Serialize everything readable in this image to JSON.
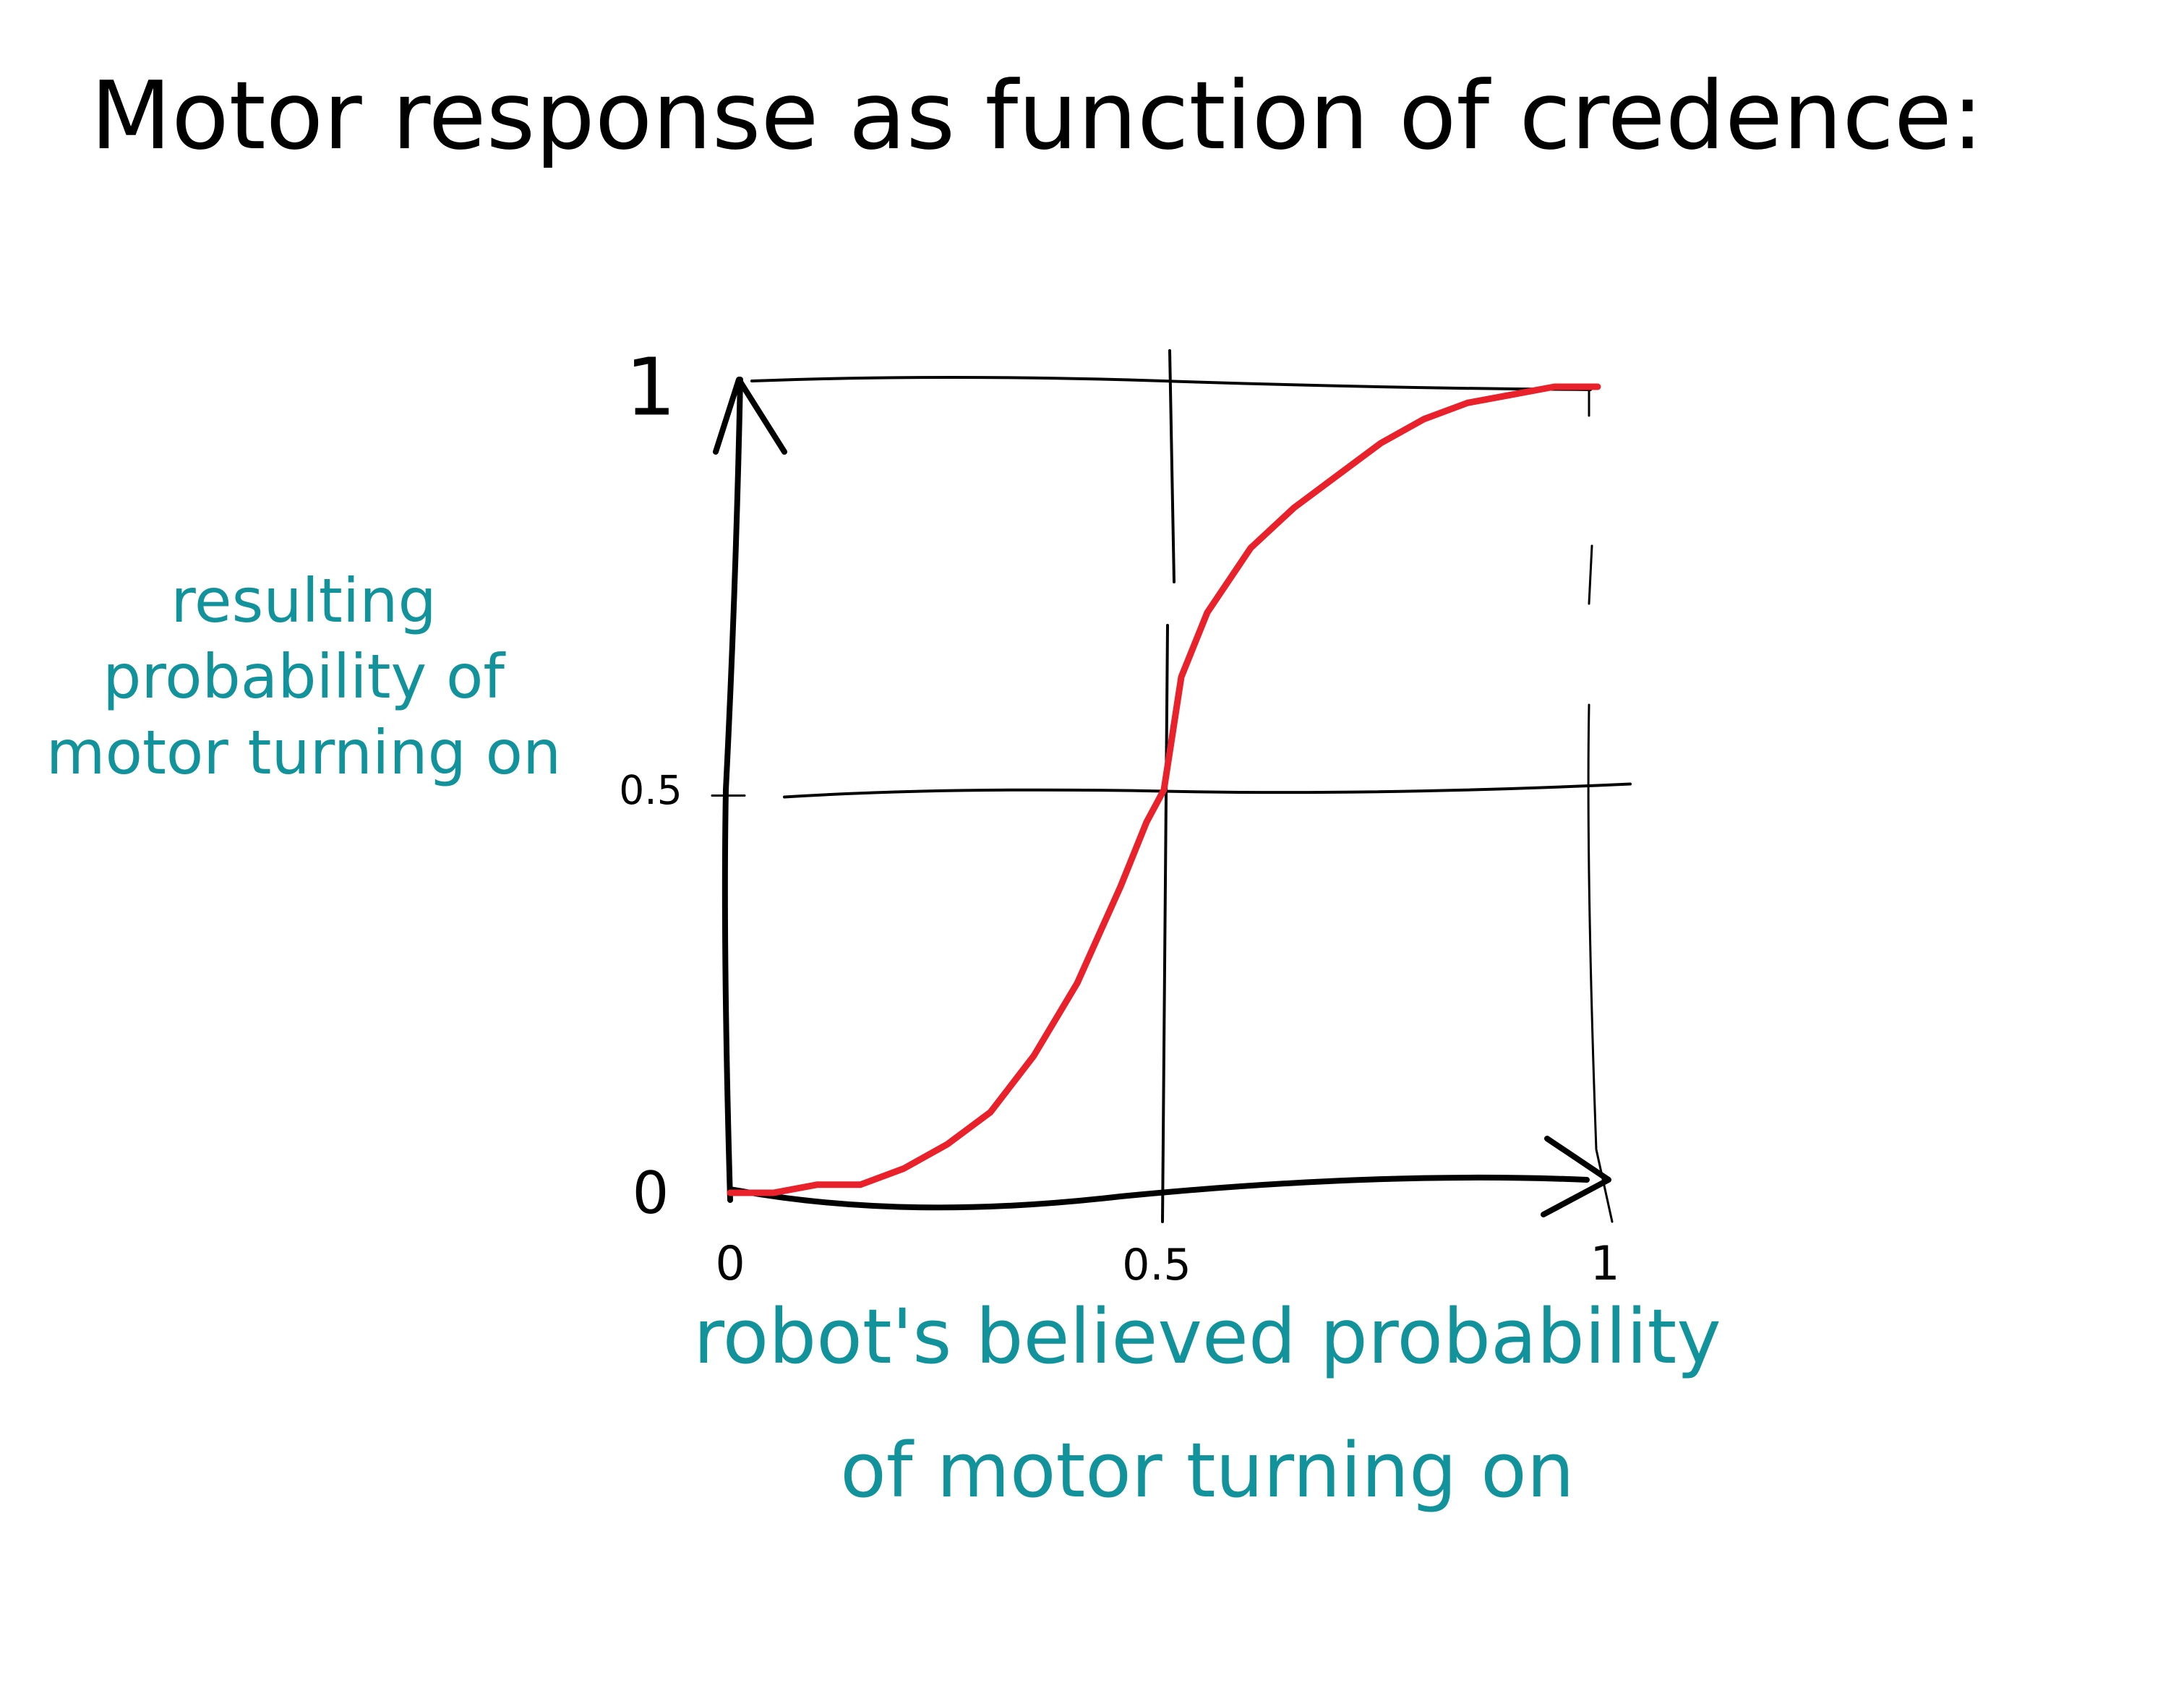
{
  "chart_data": {
    "type": "line",
    "title": "Motor response as function of credence:",
    "xlabel": "robot's believed probability of motor turning on",
    "ylabel": "resulting probability of motor turning on",
    "xlim": [
      0,
      1
    ],
    "ylim": [
      0,
      1
    ],
    "x_ticks": [
      "0",
      "0.5",
      "1"
    ],
    "y_ticks": [
      "0",
      "0.5",
      "1"
    ],
    "grid": true,
    "series": [
      {
        "color": "#e8212b",
        "x": [
          0.0,
          0.05,
          0.1,
          0.15,
          0.2,
          0.25,
          0.3,
          0.35,
          0.4,
          0.45,
          0.48,
          0.5,
          0.52,
          0.55,
          0.6,
          0.65,
          0.7,
          0.75,
          0.8,
          0.85,
          0.9,
          0.95,
          1.0
        ],
        "y": [
          0.0,
          0.0,
          0.01,
          0.01,
          0.03,
          0.06,
          0.1,
          0.17,
          0.26,
          0.38,
          0.46,
          0.5,
          0.64,
          0.72,
          0.8,
          0.85,
          0.89,
          0.93,
          0.96,
          0.98,
          0.99,
          1.0,
          1.0
        ]
      }
    ]
  },
  "colors": {
    "ink": "#000000",
    "curve": "#e8212b",
    "label": "#12929a"
  }
}
